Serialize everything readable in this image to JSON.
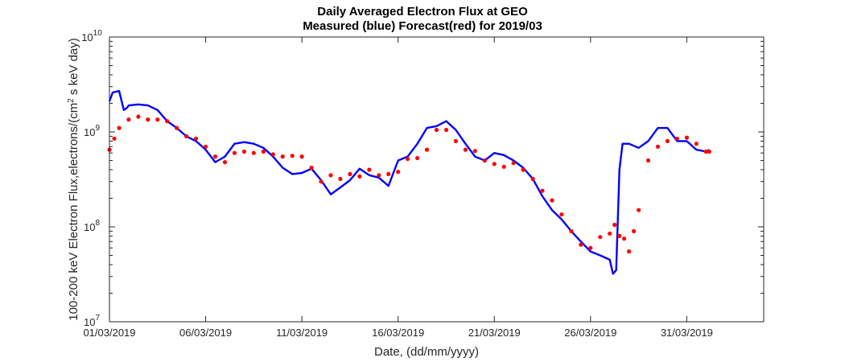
{
  "chart_data": {
    "type": "line",
    "title_line1": "Daily Averaged Electron Flux at GEO",
    "title_line2": "Measured (blue) Forecast(red) for 2019/03",
    "xlabel": "Date, (dd/mm/yyyy)",
    "ylabel": "100-200 keV Electron Flux,electrons/(cm² s keV day)",
    "ylabel_parts": {
      "before": "100-200 keV Electron Flux,electrons/(cm",
      "sup": "2",
      "after": " s keV day)"
    },
    "y_scale": "log",
    "ylim": [
      10000000.0,
      10000000000.0
    ],
    "xlim": [
      "2019-03-01",
      "2019-04-04"
    ],
    "x_ticks": [
      "01/03/2019",
      "06/03/2019",
      "11/03/2019",
      "16/03/2019",
      "21/03/2019",
      "26/03/2019",
      "31/03/2019"
    ],
    "y_ticks": [
      {
        "base": "10",
        "exp": "7"
      },
      {
        "base": "10",
        "exp": "8"
      },
      {
        "base": "10",
        "exp": "9"
      },
      {
        "base": "10",
        "exp": "10"
      }
    ],
    "series": [
      {
        "name": "Measured (blue)",
        "color": "#0000ff",
        "style": "line",
        "x": [
          "2019-03-01 00:00",
          "2019-03-01 04:00",
          "2019-03-01 12:00",
          "2019-03-01 18:00",
          "2019-03-01 22:00",
          "2019-03-02 00:00",
          "2019-03-02 12:00",
          "2019-03-03 00:00",
          "2019-03-03 12:00",
          "2019-03-04 00:00",
          "2019-03-04 12:00",
          "2019-03-05 00:00",
          "2019-03-05 12:00",
          "2019-03-06 00:00",
          "2019-03-06 12:00",
          "2019-03-07 00:00",
          "2019-03-07 12:00",
          "2019-03-08 00:00",
          "2019-03-08 12:00",
          "2019-03-09 00:00",
          "2019-03-09 12:00",
          "2019-03-10 00:00",
          "2019-03-10 12:00",
          "2019-03-11 00:00",
          "2019-03-11 12:00",
          "2019-03-12 00:00",
          "2019-03-12 12:00",
          "2019-03-13 00:00",
          "2019-03-13 12:00",
          "2019-03-14 00:00",
          "2019-03-14 12:00",
          "2019-03-15 00:00",
          "2019-03-15 12:00",
          "2019-03-16 00:00",
          "2019-03-16 12:00",
          "2019-03-17 00:00",
          "2019-03-17 12:00",
          "2019-03-18 00:00",
          "2019-03-18 12:00",
          "2019-03-19 00:00",
          "2019-03-19 12:00",
          "2019-03-20 00:00",
          "2019-03-20 12:00",
          "2019-03-21 00:00",
          "2019-03-21 12:00",
          "2019-03-22 00:00",
          "2019-03-22 12:00",
          "2019-03-23 00:00",
          "2019-03-23 12:00",
          "2019-03-24 00:00",
          "2019-03-24 12:00",
          "2019-03-25 00:00",
          "2019-03-25 12:00",
          "2019-03-26 00:00",
          "2019-03-26 12:00",
          "2019-03-27 00:00",
          "2019-03-27 04:00",
          "2019-03-27 08:00",
          "2019-03-27 12:00",
          "2019-03-27 16:00",
          "2019-03-28 00:00",
          "2019-03-28 12:00",
          "2019-03-29 00:00",
          "2019-03-29 12:00",
          "2019-03-30 00:00",
          "2019-03-30 12:00",
          "2019-03-31 00:00",
          "2019-03-31 12:00",
          "2019-04-01 00:00",
          "2019-04-01 04:00"
        ],
        "values": [
          2100000000.0,
          2600000000.0,
          2700000000.0,
          1700000000.0,
          1800000000.0,
          1900000000.0,
          1950000000.0,
          1900000000.0,
          1700000000.0,
          1300000000.0,
          1100000000.0,
          900000000.0,
          800000000.0,
          650000000.0,
          480000000.0,
          550000000.0,
          750000000.0,
          780000000.0,
          750000000.0,
          680000000.0,
          550000000.0,
          420000000.0,
          360000000.0,
          370000000.0,
          410000000.0,
          310000000.0,
          220000000.0,
          260000000.0,
          310000000.0,
          410000000.0,
          350000000.0,
          330000000.0,
          270000000.0,
          500000000.0,
          550000000.0,
          750000000.0,
          1100000000.0,
          1150000000.0,
          1300000000.0,
          1050000000.0,
          750000000.0,
          550000000.0,
          500000000.0,
          600000000.0,
          570000000.0,
          500000000.0,
          420000000.0,
          320000000.0,
          210000000.0,
          150000000.0,
          120000000.0,
          90000000.0,
          70000000.0,
          55000000.0,
          50000000.0,
          45000000.0,
          32000000.0,
          35000000.0,
          400000000.0,
          750000000.0,
          750000000.0,
          680000000.0,
          800000000.0,
          1100000000.0,
          1100000000.0,
          800000000.0,
          800000000.0,
          650000000.0,
          620000000.0,
          650000000.0
        ]
      },
      {
        "name": "Forecast(red)",
        "color": "#ff0000",
        "style": "markers",
        "x": [
          "2019-03-01 00:00",
          "2019-03-01 06:00",
          "2019-03-01 12:00",
          "2019-03-02 00:00",
          "2019-03-02 12:00",
          "2019-03-03 00:00",
          "2019-03-03 12:00",
          "2019-03-04 00:00",
          "2019-03-04 12:00",
          "2019-03-05 00:00",
          "2019-03-05 12:00",
          "2019-03-06 00:00",
          "2019-03-06 12:00",
          "2019-03-07 00:00",
          "2019-03-07 12:00",
          "2019-03-08 00:00",
          "2019-03-08 12:00",
          "2019-03-09 00:00",
          "2019-03-09 12:00",
          "2019-03-10 00:00",
          "2019-03-10 12:00",
          "2019-03-11 00:00",
          "2019-03-11 12:00",
          "2019-03-12 00:00",
          "2019-03-12 12:00",
          "2019-03-13 00:00",
          "2019-03-13 12:00",
          "2019-03-14 00:00",
          "2019-03-14 12:00",
          "2019-03-15 00:00",
          "2019-03-15 12:00",
          "2019-03-16 00:00",
          "2019-03-16 12:00",
          "2019-03-17 00:00",
          "2019-03-17 12:00",
          "2019-03-18 00:00",
          "2019-03-18 12:00",
          "2019-03-19 00:00",
          "2019-03-19 12:00",
          "2019-03-20 00:00",
          "2019-03-20 12:00",
          "2019-03-21 00:00",
          "2019-03-21 12:00",
          "2019-03-22 00:00",
          "2019-03-22 12:00",
          "2019-03-23 00:00",
          "2019-03-23 12:00",
          "2019-03-24 00:00",
          "2019-03-24 12:00",
          "2019-03-25 00:00",
          "2019-03-25 12:00",
          "2019-03-26 00:00",
          "2019-03-26 12:00",
          "2019-03-27 00:00",
          "2019-03-27 06:00",
          "2019-03-27 12:00",
          "2019-03-27 18:00",
          "2019-03-28 00:00",
          "2019-03-28 06:00",
          "2019-03-28 12:00",
          "2019-03-29 00:00",
          "2019-03-29 12:00",
          "2019-03-30 00:00",
          "2019-03-30 12:00",
          "2019-03-31 00:00",
          "2019-03-31 12:00",
          "2019-04-01 00:00",
          "2019-04-01 04:00"
        ],
        "values": [
          650000000.0,
          850000000.0,
          1100000000.0,
          1350000000.0,
          1450000000.0,
          1350000000.0,
          1350000000.0,
          1300000000.0,
          1100000000.0,
          900000000.0,
          850000000.0,
          700000000.0,
          550000000.0,
          480000000.0,
          600000000.0,
          620000000.0,
          600000000.0,
          620000000.0,
          580000000.0,
          550000000.0,
          560000000.0,
          550000000.0,
          420000000.0,
          300000000.0,
          350000000.0,
          320000000.0,
          360000000.0,
          340000000.0,
          400000000.0,
          350000000.0,
          360000000.0,
          380000000.0,
          520000000.0,
          530000000.0,
          650000000.0,
          1050000000.0,
          1050000000.0,
          800000000.0,
          650000000.0,
          630000000.0,
          500000000.0,
          460000000.0,
          430000000.0,
          470000000.0,
          400000000.0,
          320000000.0,
          240000000.0,
          190000000.0,
          135000000.0,
          90000000.0,
          65000000.0,
          60000000.0,
          78000000.0,
          85000000.0,
          105000000.0,
          80000000.0,
          75000000.0,
          55000000.0,
          90000000.0,
          150000000.0,
          500000000.0,
          700000000.0,
          800000000.0,
          850000000.0,
          870000000.0,
          750000000.0,
          620000000.0,
          620000000.0
        ]
      }
    ],
    "grid": false,
    "legend": "none"
  }
}
